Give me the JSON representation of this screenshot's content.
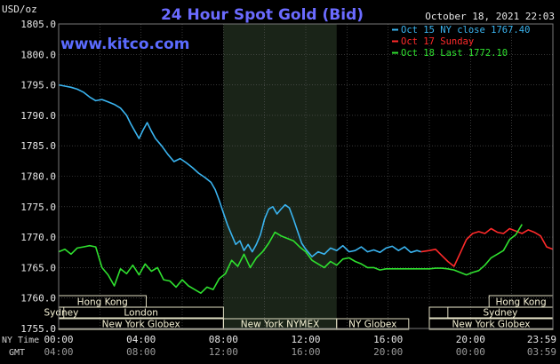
{
  "chart_data": {
    "type": "line",
    "title": "24 Hour Spot Gold (Bid)",
    "watermark": "www.kitco.com",
    "datetime": "October 18, 2021 22:03",
    "y_unit": "USD/oz",
    "ylim": [
      1755.0,
      1805.0
    ],
    "y_ticks": [
      "1805.0",
      "1800.0",
      "1795.0",
      "1790.0",
      "1785.0",
      "1780.0",
      "1775.0",
      "1770.0",
      "1765.0",
      "1760.0",
      "1755.0"
    ],
    "x_ticks_ny": [
      "00:00",
      "04:00",
      "08:00",
      "12:00",
      "16:00",
      "20:00",
      "23:59"
    ],
    "x_ticks_gmt": [
      "04:00",
      "08:00",
      "12:00",
      "16:00",
      "20:00",
      "00:00",
      "03:59"
    ],
    "x_row_labels": [
      "NY Time",
      "GMT"
    ],
    "xlim_hours": [
      0,
      24
    ],
    "grid": true,
    "legend_position": "top-right",
    "colors": {
      "background": "#000000",
      "grid": "#5a5a5a",
      "title": "#6b6bff",
      "watermark": "#5b6bff",
      "text": "#e6e6e6",
      "shaded_region": "#1a2418",
      "session_box": "#f7f3d6"
    },
    "series": [
      {
        "name": "Oct 15 NY close 1767.40",
        "color": "#3ab4f0",
        "x": [
          0,
          0.3,
          0.6,
          0.9,
          1.2,
          1.5,
          1.8,
          2.1,
          2.4,
          2.7,
          3.0,
          3.3,
          3.5,
          3.7,
          3.9,
          4.1,
          4.3,
          4.5,
          4.7,
          5.0,
          5.3,
          5.6,
          5.9,
          6.2,
          6.5,
          6.8,
          7.1,
          7.4,
          7.6,
          7.8,
          8.0,
          8.2,
          8.4,
          8.6,
          8.8,
          9.0,
          9.2,
          9.4,
          9.6,
          9.8,
          10.0,
          10.2,
          10.4,
          10.6,
          10.8,
          11.0,
          11.2,
          11.4,
          11.6,
          11.8,
          12.0,
          12.3,
          12.6,
          12.9,
          13.2,
          13.5,
          13.8,
          14.1,
          14.4,
          14.7,
          15.0,
          15.3,
          15.6,
          15.9,
          16.2,
          16.5,
          16.8,
          17.1,
          17.4,
          17.6
        ],
        "y": [
          1795.0,
          1794.8,
          1794.6,
          1794.3,
          1793.8,
          1793.0,
          1792.4,
          1792.6,
          1792.2,
          1791.8,
          1791.2,
          1790.0,
          1788.6,
          1787.4,
          1786.2,
          1787.6,
          1788.8,
          1787.4,
          1786.2,
          1785.0,
          1783.6,
          1782.4,
          1782.9,
          1782.2,
          1781.4,
          1780.5,
          1779.8,
          1779.0,
          1777.8,
          1776.0,
          1774.0,
          1772.0,
          1770.4,
          1768.8,
          1769.4,
          1767.8,
          1768.8,
          1767.6,
          1768.8,
          1770.4,
          1773.0,
          1774.6,
          1775.0,
          1773.8,
          1774.6,
          1775.3,
          1774.8,
          1773.0,
          1771.0,
          1769.0,
          1768.0,
          1766.8,
          1767.6,
          1767.2,
          1768.2,
          1767.8,
          1768.6,
          1767.6,
          1767.8,
          1768.4,
          1767.6,
          1767.9,
          1767.5,
          1768.2,
          1768.5,
          1767.8,
          1768.4,
          1767.5,
          1767.8,
          1767.6
        ]
      },
      {
        "name": "Oct 17 Sunday",
        "color": "#ff2a2a",
        "x": [
          17.6,
          18.0,
          18.3,
          18.6,
          18.9,
          19.2,
          19.5,
          19.8,
          20.1,
          20.4,
          20.7,
          21.0,
          21.3,
          21.6,
          21.9,
          22.2,
          22.5,
          22.8,
          23.1,
          23.4,
          23.7,
          24.0
        ],
        "y": [
          1767.6,
          1767.8,
          1768.0,
          1767.0,
          1766.0,
          1765.2,
          1767.4,
          1769.6,
          1770.6,
          1770.9,
          1770.6,
          1771.4,
          1770.8,
          1770.6,
          1771.4,
          1771.0,
          1770.6,
          1771.2,
          1770.8,
          1770.2,
          1768.4,
          1768.0
        ]
      },
      {
        "name": "Oct 18 Last 1772.10",
        "color": "#2fe02f",
        "x": [
          0,
          0.3,
          0.6,
          0.9,
          1.2,
          1.5,
          1.8,
          2.1,
          2.4,
          2.7,
          3.0,
          3.3,
          3.6,
          3.9,
          4.2,
          4.5,
          4.8,
          5.1,
          5.4,
          5.7,
          6.0,
          6.3,
          6.6,
          6.9,
          7.2,
          7.5,
          7.8,
          8.1,
          8.4,
          8.7,
          9.0,
          9.3,
          9.6,
          9.9,
          10.2,
          10.5,
          10.8,
          11.1,
          11.4,
          11.7,
          12.0,
          12.3,
          12.6,
          12.9,
          13.2,
          13.5,
          13.8,
          14.1,
          14.4,
          14.7,
          15.0,
          15.3,
          15.6,
          15.9,
          16.2,
          16.5,
          16.8,
          17.1,
          17.4,
          17.7,
          18.0,
          18.3,
          18.6,
          18.9,
          19.2,
          19.5,
          19.8,
          20.1,
          20.4,
          20.7,
          21.0,
          21.3,
          21.6,
          21.9,
          22.2,
          22.5
        ],
        "y": [
          1767.6,
          1768.0,
          1767.2,
          1768.2,
          1768.4,
          1768.6,
          1768.4,
          1765.0,
          1763.8,
          1762.0,
          1764.8,
          1764.0,
          1765.4,
          1763.8,
          1765.6,
          1764.4,
          1765.0,
          1763.0,
          1762.8,
          1761.8,
          1763.0,
          1762.0,
          1761.4,
          1760.8,
          1761.8,
          1761.4,
          1763.2,
          1764.0,
          1766.2,
          1765.2,
          1767.2,
          1765.0,
          1766.6,
          1767.6,
          1769.0,
          1770.8,
          1770.2,
          1769.8,
          1769.4,
          1768.4,
          1767.6,
          1766.2,
          1765.6,
          1765.0,
          1766.0,
          1765.4,
          1766.4,
          1766.6,
          1766.0,
          1765.6,
          1765.0,
          1765.0,
          1764.6,
          1764.8,
          1764.8,
          1764.8,
          1764.8,
          1764.8,
          1764.8,
          1764.8,
          1764.8,
          1764.9,
          1764.9,
          1764.8,
          1764.6,
          1764.2,
          1763.8,
          1764.2,
          1764.5,
          1765.4,
          1766.6,
          1767.2,
          1767.8,
          1769.6,
          1770.4,
          1772.1
        ]
      }
    ],
    "shaded_region_hours": [
      8.0,
      13.5
    ],
    "sessions": [
      {
        "label": "Hong Kong",
        "start": 0,
        "end": 4.25,
        "row": 0
      },
      {
        "label": "Sydney",
        "start": 0,
        "end": 0.25,
        "row": 1
      },
      {
        "label": "London",
        "start": 0,
        "end": 8,
        "row": 2
      },
      {
        "label": "New York Globex",
        "start": 0,
        "end": 8,
        "row": 3
      },
      {
        "label": "New York NYMEX",
        "start": 8,
        "end": 13.5,
        "row": 3
      },
      {
        "label": "NY Globex",
        "start": 13.5,
        "end": 17,
        "row": 3
      },
      {
        "label": "Hong Kong",
        "start": 20.9,
        "end": 24,
        "row": 0
      },
      {
        "label": "Sydney",
        "start": 18.9,
        "end": 24,
        "row": 1
      },
      {
        "label": "",
        "start": 18,
        "end": 24,
        "row": 2
      },
      {
        "label": "New York Globex",
        "start": 18,
        "end": 24,
        "row": 3
      }
    ]
  }
}
